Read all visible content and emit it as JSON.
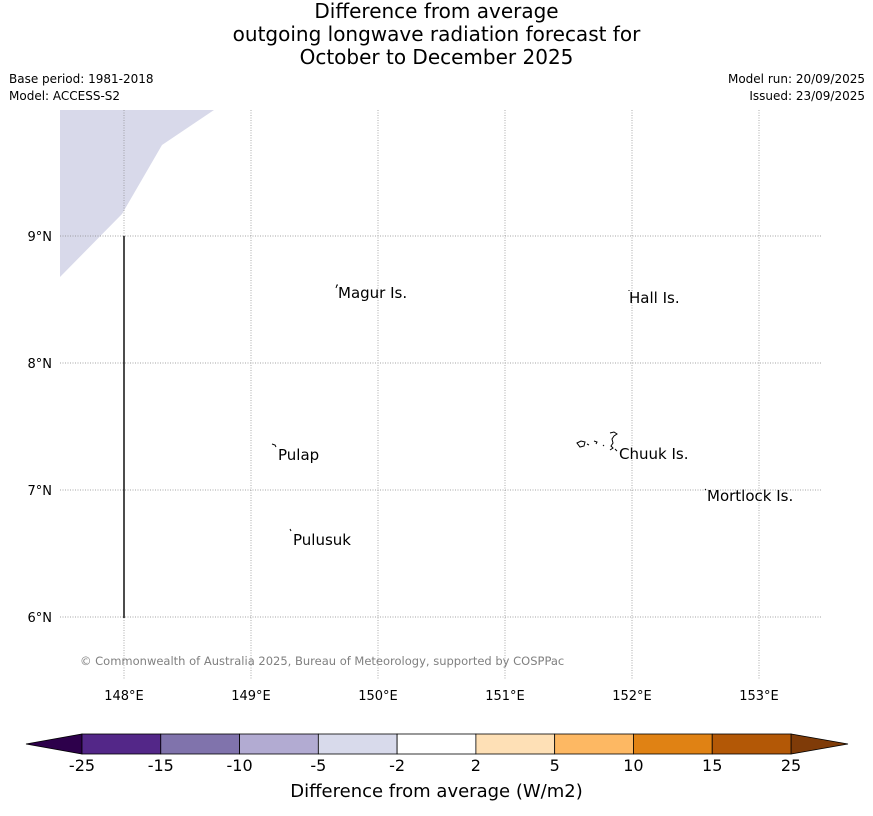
{
  "title": {
    "line1": "Difference from average",
    "line2": "outgoing longwave radiation forecast for",
    "line3": "October to December 2025"
  },
  "meta": {
    "base_period": "Base period: 1981-2018",
    "model": "Model: ACCESS-S2",
    "model_run": "Model run: 20/09/2025",
    "issued": "Issued: 23/09/2025"
  },
  "map": {
    "lon_labels": [
      "148°E",
      "149°E",
      "150°E",
      "151°E",
      "152°E",
      "153°E"
    ],
    "lat_labels": [
      "9°N",
      "8°N",
      "7°N",
      "6°N"
    ],
    "places": [
      {
        "name": "Magur Is."
      },
      {
        "name": "Hall Is."
      },
      {
        "name": "Pulap"
      },
      {
        "name": "Chuuk Is."
      },
      {
        "name": "Mortlock Is."
      },
      {
        "name": "Pulusuk"
      }
    ],
    "anomaly_region": {
      "category": "-5 to -2",
      "color": "#d8d9ea"
    },
    "copyright": "© Commonwealth of Australia 2025, Bureau of Meteorology, supported by COSPPac"
  },
  "colorbar": {
    "label": "Difference from average (W/m2)",
    "ticks": [
      "-25",
      "-15",
      "-10",
      "-5",
      "-2",
      "2",
      "5",
      "10",
      "15",
      "25"
    ],
    "colors": [
      "#532788",
      "#8073ac",
      "#b2abd2",
      "#d8daeb",
      "#ffffff",
      "#fee0b6",
      "#fdb863",
      "#e08214",
      "#b35806"
    ],
    "under_color": "#2d004b",
    "over_color": "#7f3b08"
  }
}
